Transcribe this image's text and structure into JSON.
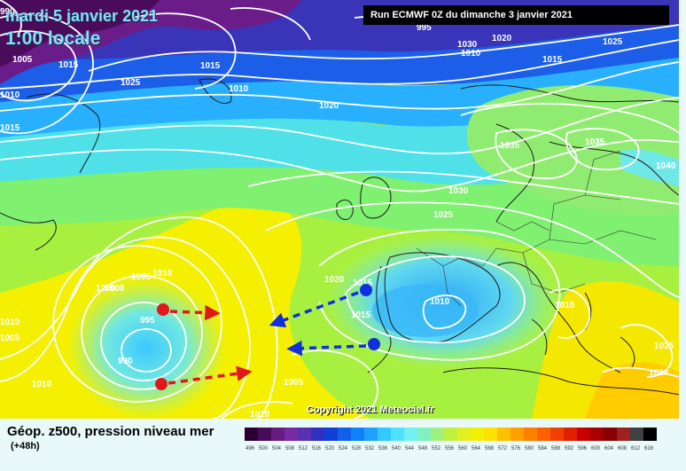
{
  "header": {
    "date": "mardi 5 janvier 2021",
    "time": "1:00 locale",
    "run": "Run ECMWF 0Z du dimanche 3 janvier 2021"
  },
  "copyright": "Copyright 2021 Meteociel.fr",
  "footer": {
    "parameter": "Géop. z500, pression niveau mer",
    "lead_time": "(+48h)"
  },
  "isobar_labels": [
    "995",
    "1000",
    "1005",
    "1010",
    "1015",
    "1020",
    "1025",
    "1030",
    "1035",
    "1040",
    "990",
    "1005",
    "1010",
    "1015",
    "1000",
    "1010",
    "995",
    "990",
    "1010",
    "1010",
    "1015",
    "1005",
    "1015",
    "1020",
    "1025",
    "1010",
    "1035",
    "1035",
    "1030",
    "1025",
    "1020",
    "1015",
    "1010",
    "1015",
    "1010",
    "1025",
    "1020",
    "1005",
    "1010"
  ],
  "legend": {
    "values": [
      "496",
      "500",
      "504",
      "508",
      "512",
      "516",
      "520",
      "524",
      "528",
      "532",
      "536",
      "540",
      "544",
      "548",
      "552",
      "556",
      "560",
      "564",
      "568",
      "572",
      "576",
      "580",
      "584",
      "588",
      "592",
      "596",
      "600",
      "604",
      "608",
      "612",
      "616"
    ],
    "colors": [
      "#2a0030",
      "#4a0a5a",
      "#6a1b80",
      "#7a2aa0",
      "#5a30b0",
      "#3030c0",
      "#1040d8",
      "#1060e8",
      "#1080ff",
      "#20a0ff",
      "#30c8ff",
      "#50e0ff",
      "#70f0f0",
      "#80f0c0",
      "#a0f080",
      "#c0f040",
      "#e0f020",
      "#f0f000",
      "#ffe000",
      "#ffc000",
      "#ffa000",
      "#ff8000",
      "#ff6000",
      "#f04000",
      "#e02000",
      "#c80000",
      "#a80000",
      "#880000",
      "#a02020",
      "#404040",
      "#000000"
    ]
  },
  "annotations": {
    "arrow_color_red": "#e01818",
    "arrow_color_blue": "#1030e0"
  }
}
